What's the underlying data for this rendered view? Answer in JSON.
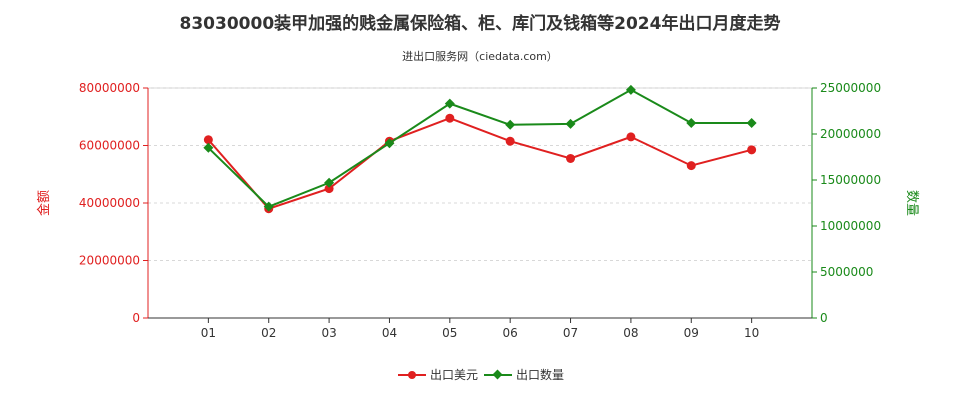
{
  "chart_data": {
    "type": "line",
    "title": "83030000装甲加强的贱金属保险箱、柜、库门及钱箱等2024年出口月度走势",
    "subtitle": "进出口服务网（ciedata.com）",
    "categories": [
      "01",
      "02",
      "03",
      "04",
      "05",
      "06",
      "07",
      "08",
      "09",
      "10"
    ],
    "left_axis": {
      "label": "金额",
      "ylim": [
        0,
        80000000
      ],
      "ticks": [
        "0",
        "20000000",
        "40000000",
        "60000000",
        "80000000"
      ],
      "color": "#e02020"
    },
    "right_axis": {
      "label": "数量",
      "ylim": [
        0,
        25000000
      ],
      "ticks": [
        "0",
        "5000000",
        "10000000",
        "15000000",
        "20000000",
        "25000000"
      ],
      "color": "#1a8a1a"
    },
    "series": [
      {
        "name": "出口美元",
        "axis": "left",
        "color": "#e02020",
        "marker": "circle",
        "values": [
          62000000,
          38000000,
          45000000,
          61500000,
          69500000,
          61500000,
          55500000,
          63000000,
          53000000,
          58500000
        ]
      },
      {
        "name": "出口数量",
        "axis": "right",
        "color": "#1a8a1a",
        "marker": "diamond",
        "values": [
          18500000,
          12100000,
          14700000,
          19000000,
          23300000,
          21000000,
          21100000,
          24800000,
          21200000,
          21200000
        ]
      }
    ],
    "grid": true,
    "legend_position": "bottom-center"
  }
}
